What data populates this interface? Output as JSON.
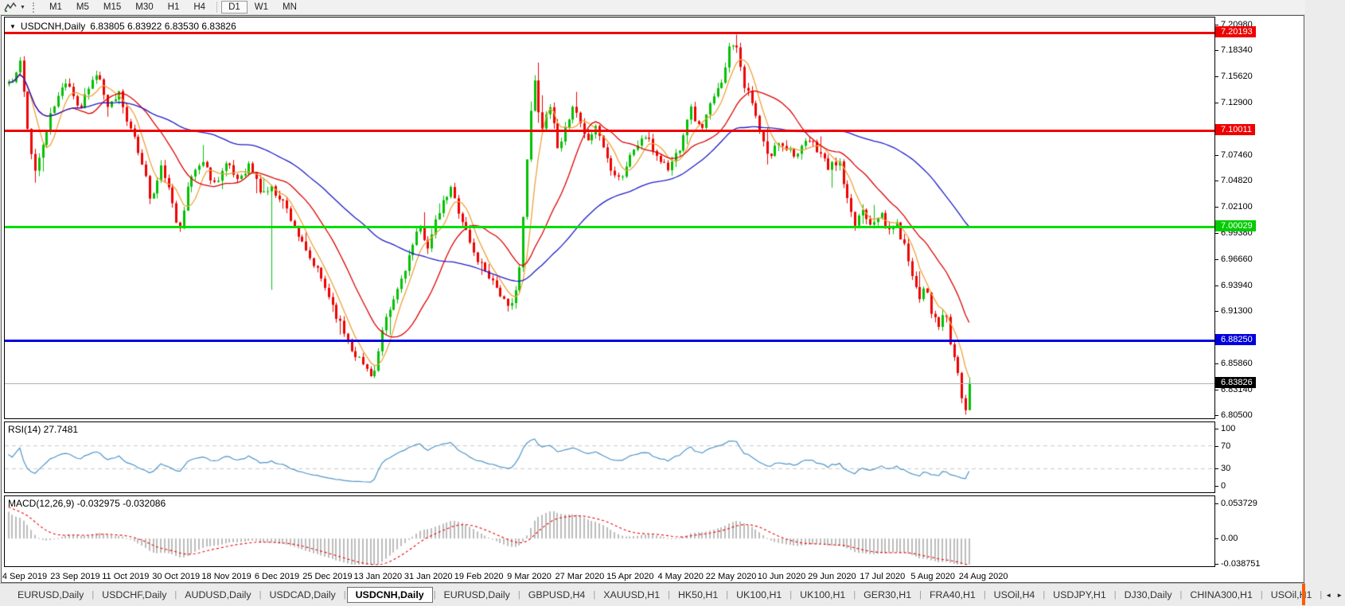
{
  "icons": {
    "title_marker": "▼",
    "dropdown_arrow": "▼",
    "tab_scroll_left": "◄",
    "tab_scroll_right": "►"
  },
  "toolbar": {
    "timeframes": [
      "M1",
      "M5",
      "M15",
      "M30",
      "H1",
      "H4",
      "D1",
      "W1",
      "MN"
    ],
    "active_timeframe": "D1",
    "separator_before": "D1"
  },
  "chart": {
    "title_symbol": "USDCNH,Daily",
    "title_ohlc": "6.83805 6.83922 6.83530 6.83826"
  },
  "chart_data": {
    "type": "candlestick",
    "symbol": "USDCNH",
    "timeframe": "Daily",
    "ohlc": {
      "open": 6.83805,
      "high": 6.83922,
      "low": 6.8353,
      "close": 6.83826
    },
    "price_axis": {
      "min": 6.8018,
      "max": 7.2172,
      "ticks": [
        "7.20980",
        "7.18340",
        "7.15620",
        "7.12900",
        "7.07460",
        "7.04820",
        "7.02100",
        "6.99380",
        "6.96660",
        "6.93940",
        "6.91300",
        "6.85860",
        "6.83140",
        "6.80500"
      ]
    },
    "badges": [
      {
        "value": "7.20193",
        "color": "#ee0000",
        "name": "resistance-badge-1"
      },
      {
        "value": "7.10011",
        "color": "#ee0000",
        "name": "resistance-badge-2"
      },
      {
        "value": "7.00029",
        "color": "#00cc00",
        "name": "support-badge-green"
      },
      {
        "value": "6.88250",
        "color": "#0000dd",
        "name": "support-badge-blue"
      },
      {
        "value": "6.83826",
        "color": "#000000",
        "name": "current-price-badge"
      }
    ],
    "hlines": [
      {
        "price": 7.20193,
        "color": "#ee0000",
        "width": 3,
        "name": "resistance-line-1"
      },
      {
        "price": 7.10011,
        "color": "#ee0000",
        "width": 3,
        "name": "resistance-line-2"
      },
      {
        "price": 7.00029,
        "color": "#00dd00",
        "width": 3,
        "name": "support-line-green"
      },
      {
        "price": 6.8825,
        "color": "#0000dd",
        "width": 3,
        "name": "support-line-blue"
      }
    ],
    "bid_line": {
      "price": 6.83826,
      "color": "#b0b0b0"
    },
    "candles": {
      "count": 253,
      "seed": 11,
      "up_color": "#00c000",
      "down_color": "#ee0000",
      "anchors": [
        [
          0.005,
          7.15
        ],
        [
          0.012,
          7.172
        ],
        [
          0.02,
          7.1
        ],
        [
          0.028,
          7.057
        ],
        [
          0.045,
          7.12
        ],
        [
          0.061,
          7.155
        ],
        [
          0.074,
          7.12
        ],
        [
          0.082,
          7.145
        ],
        [
          0.094,
          7.16
        ],
        [
          0.102,
          7.12
        ],
        [
          0.115,
          7.14
        ],
        [
          0.127,
          7.1
        ],
        [
          0.14,
          7.065
        ],
        [
          0.148,
          7.025
        ],
        [
          0.16,
          7.065
        ],
        [
          0.177,
          6.996
        ],
        [
          0.189,
          7.05
        ],
        [
          0.201,
          7.07
        ],
        [
          0.214,
          7.045
        ],
        [
          0.226,
          7.065
        ],
        [
          0.238,
          7.05
        ],
        [
          0.251,
          7.065
        ],
        [
          0.263,
          7.035
        ],
        [
          0.273,
          7.04
        ],
        [
          0.284,
          7.03
        ],
        [
          0.296,
          7.005
        ],
        [
          0.308,
          6.975
        ],
        [
          0.321,
          6.955
        ],
        [
          0.333,
          6.93
        ],
        [
          0.345,
          6.9
        ],
        [
          0.357,
          6.875
        ],
        [
          0.37,
          6.856
        ],
        [
          0.38,
          6.846
        ],
        [
          0.39,
          6.895
        ],
        [
          0.403,
          6.93
        ],
        [
          0.415,
          6.965
        ],
        [
          0.428,
          7.0
        ],
        [
          0.437,
          6.98
        ],
        [
          0.448,
          7.015
        ],
        [
          0.46,
          7.04
        ],
        [
          0.473,
          7.005
        ],
        [
          0.485,
          6.97
        ],
        [
          0.497,
          6.955
        ],
        [
          0.51,
          6.935
        ],
        [
          0.522,
          6.91
        ],
        [
          0.533,
          6.965
        ],
        [
          0.541,
          7.09
        ],
        [
          0.547,
          7.155
        ],
        [
          0.555,
          7.1
        ],
        [
          0.563,
          7.13
        ],
        [
          0.571,
          7.085
        ],
        [
          0.58,
          7.1
        ],
        [
          0.588,
          7.125
        ],
        [
          0.6,
          7.09
        ],
        [
          0.612,
          7.105
        ],
        [
          0.625,
          7.065
        ],
        [
          0.637,
          7.05
        ],
        [
          0.65,
          7.08
        ],
        [
          0.662,
          7.095
        ],
        [
          0.674,
          7.075
        ],
        [
          0.687,
          7.06
        ],
        [
          0.699,
          7.085
        ],
        [
          0.709,
          7.125
        ],
        [
          0.72,
          7.1
        ],
        [
          0.73,
          7.125
        ],
        [
          0.74,
          7.145
        ],
        [
          0.75,
          7.185
        ],
        [
          0.757,
          7.195
        ],
        [
          0.765,
          7.15
        ],
        [
          0.773,
          7.13
        ],
        [
          0.783,
          7.095
        ],
        [
          0.791,
          7.07
        ],
        [
          0.802,
          7.09
        ],
        [
          0.813,
          7.08
        ],
        [
          0.822,
          7.075
        ],
        [
          0.832,
          7.09
        ],
        [
          0.843,
          7.08
        ],
        [
          0.854,
          7.06
        ],
        [
          0.864,
          7.07
        ],
        [
          0.872,
          7.03
        ],
        [
          0.88,
          7.0
        ],
        [
          0.888,
          7.02
        ],
        [
          0.897,
          7.005
        ],
        [
          0.907,
          7.015
        ],
        [
          0.915,
          6.995
        ],
        [
          0.923,
          7.005
        ],
        [
          0.931,
          6.985
        ],
        [
          0.94,
          6.955
        ],
        [
          0.948,
          6.925
        ],
        [
          0.954,
          6.945
        ],
        [
          0.961,
          6.91
        ],
        [
          0.968,
          6.895
        ],
        [
          0.974,
          6.915
        ],
        [
          0.981,
          6.875
        ],
        [
          0.987,
          6.855
        ],
        [
          0.992,
          6.825
        ],
        [
          0.996,
          6.81
        ],
        [
          1.0,
          6.838
        ]
      ],
      "wick_events": [
        {
          "f": 0.028,
          "low": 7.046
        },
        {
          "f": 0.273,
          "low": 6.935
        },
        {
          "f": 0.757,
          "high": 7.1995
        },
        {
          "f": 0.996,
          "low": 6.8055
        }
      ]
    },
    "moving_averages": [
      {
        "period": 6,
        "color": "#eda23b",
        "name": "ma-fast-orange"
      },
      {
        "period": 18,
        "color": "#dd0000",
        "name": "ma-medium-red"
      },
      {
        "period": 55,
        "color": "#1c1cc8",
        "name": "ma-slow-blue"
      }
    ],
    "rsi": {
      "label": "RSI(14) 27.7481",
      "period": 14,
      "value": 27.7481,
      "color": "#4d94c9",
      "levels": [
        70,
        30
      ],
      "ticks": [
        "100",
        "70",
        "30",
        "0"
      ],
      "range": [
        0,
        100
      ]
    },
    "macd": {
      "label": "MACD(12,26,9) -0.032975 -0.032086",
      "fast": 12,
      "slow": 26,
      "signal": 9,
      "value_main": -0.032975,
      "value_signal": -0.032086,
      "hist_color": "#bcbcbc",
      "signal_color": "#ee0000",
      "ticks": [
        {
          "label": "0.053729",
          "value": 0.053729
        },
        {
          "label": "0.00",
          "value": 0.0
        },
        {
          "label": "-0.038751",
          "value": -0.038751
        }
      ],
      "range": [
        -0.038751,
        0.053729
      ]
    },
    "x_axis": {
      "dates": [
        "4 Sep 2019",
        "23 Sep 2019",
        "11 Oct 2019",
        "30 Oct 2019",
        "18 Nov 2019",
        "6 Dec 2019",
        "25 Dec 2019",
        "13 Jan 2020",
        "31 Jan 2020",
        "19 Feb 2020",
        "9 Mar 2020",
        "27 Mar 2020",
        "15 Apr 2020",
        "4 May 2020",
        "22 May 2020",
        "10 Jun 2020",
        "29 Jun 2020",
        "17 Jul 2020",
        "5 Aug 2020",
        "24 Aug 2020"
      ],
      "first_center": 26,
      "spacing": 63.4
    }
  },
  "tabs": {
    "items": [
      "EURUSD,Daily",
      "USDCHF,Daily",
      "AUDUSD,Daily",
      "USDCAD,Daily",
      "USDCNH,Daily",
      "EURUSD,Daily",
      "GBPUSD,H4",
      "XAUUSD,H1",
      "HK50,H1",
      "UK100,H1",
      "UK100,H1",
      "GER30,H1",
      "FRA40,H1",
      "USOil,H4",
      "USDJPY,H1",
      "DJ30,Daily",
      "CHINA300,H1",
      "USOil,H1"
    ],
    "active_index": 4
  }
}
